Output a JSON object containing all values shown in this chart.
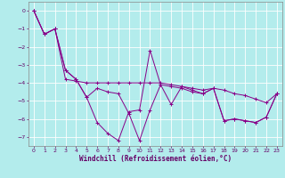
{
  "xlabel": "Windchill (Refroidissement éolien,°C)",
  "bg_color": "#b3ecec",
  "line_color": "#880088",
  "x": [
    0,
    1,
    2,
    3,
    4,
    5,
    6,
    7,
    8,
    9,
    10,
    11,
    12,
    13,
    14,
    15,
    16,
    17,
    18,
    19,
    20,
    21,
    22,
    23
  ],
  "line1": [
    0.0,
    -1.3,
    -1.0,
    -3.3,
    -3.8,
    -4.8,
    -6.2,
    -6.8,
    -7.2,
    -5.6,
    -5.5,
    -2.2,
    -4.1,
    -5.2,
    -4.2,
    -4.4,
    -4.6,
    -4.3,
    -6.1,
    -6.0,
    -6.1,
    -6.2,
    -5.9,
    -4.6
  ],
  "line2": [
    0.0,
    -1.3,
    -1.0,
    -3.3,
    -3.8,
    -4.8,
    -4.3,
    -4.5,
    -4.6,
    -5.7,
    -7.2,
    -5.5,
    -4.1,
    -4.2,
    -4.3,
    -4.5,
    -4.6,
    -4.3,
    -6.1,
    -6.0,
    -6.1,
    -6.2,
    -5.9,
    -4.6
  ],
  "line3": [
    0.0,
    -1.3,
    -1.0,
    -3.8,
    -3.9,
    -4.0,
    -4.0,
    -4.0,
    -4.0,
    -4.0,
    -4.0,
    -4.0,
    -4.0,
    -4.1,
    -4.2,
    -4.3,
    -4.4,
    -4.3,
    -4.4,
    -4.6,
    -4.7,
    -4.9,
    -5.1,
    -4.6
  ],
  "ylim": [
    -7.5,
    0.5
  ],
  "xlim": [
    -0.5,
    23.5
  ],
  "yticks": [
    0,
    -1,
    -2,
    -3,
    -4,
    -5,
    -6,
    -7
  ],
  "xticks": [
    0,
    1,
    2,
    3,
    4,
    5,
    6,
    7,
    8,
    9,
    10,
    11,
    12,
    13,
    14,
    15,
    16,
    17,
    18,
    19,
    20,
    21,
    22,
    23
  ],
  "tick_fontsize": 4.5,
  "xlabel_fontsize": 5.5,
  "lw": 0.7,
  "ms": 2.5,
  "mew": 0.7
}
